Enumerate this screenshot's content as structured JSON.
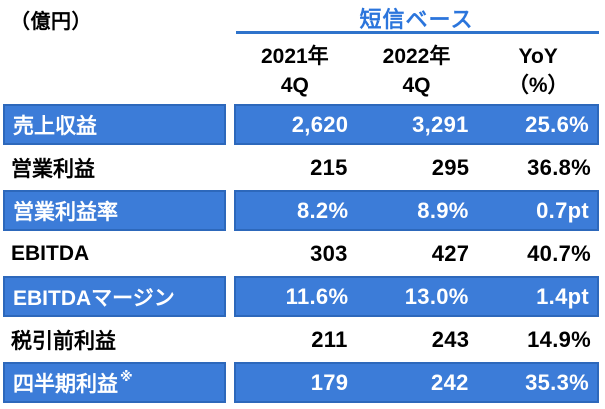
{
  "chart_data": {
    "type": "table",
    "unit_label": "（億円）",
    "title": "短信ベース",
    "columns": [
      {
        "label": "2021年4Q",
        "line1": "2021年",
        "line2": "4Q"
      },
      {
        "label": "2022年4Q",
        "line1": "2022年",
        "line2": "4Q"
      },
      {
        "label": "YoY(%)",
        "line1": "YoY",
        "line2": "（%）"
      }
    ],
    "rows": [
      {
        "label": "売上収益",
        "values": [
          "2,620",
          "3,291",
          "25.6%"
        ],
        "highlighted": true
      },
      {
        "label": "営業利益",
        "values": [
          "215",
          "295",
          "36.8%"
        ],
        "highlighted": false
      },
      {
        "label": "営業利益率",
        "values": [
          "8.2%",
          "8.9%",
          "0.7pt"
        ],
        "highlighted": true
      },
      {
        "label": "EBITDA",
        "values": [
          "303",
          "427",
          "40.7%"
        ],
        "highlighted": false
      },
      {
        "label": "EBITDAマージン",
        "values": [
          "11.6%",
          "13.0%",
          "1.4pt"
        ],
        "highlighted": true
      },
      {
        "label": "税引前利益",
        "values": [
          "211",
          "243",
          "14.9%"
        ],
        "highlighted": false
      },
      {
        "label": "四半期利益",
        "label_suffix": "※",
        "values": [
          "179",
          "242",
          "35.3%"
        ],
        "highlighted": true
      }
    ],
    "layout": {
      "grid": false,
      "highlight_style": "alternating blue fill rows, white text"
    }
  },
  "colors": {
    "highlight_fill": "#3C7CD8",
    "highlight_border": "#2D68BB",
    "title_text": "#2B75DC",
    "underline": "#2E73CB",
    "text_on_highlight": "#FFFFFF",
    "text": "#000000"
  }
}
